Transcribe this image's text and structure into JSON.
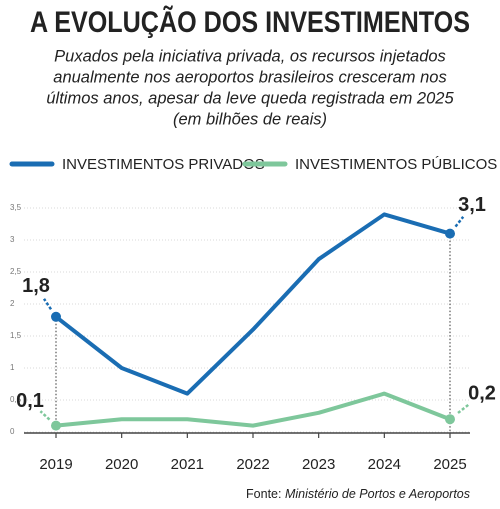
{
  "chart_data": {
    "type": "line",
    "title": "A EVOLUÇÃO DOS INVESTIMENTOS",
    "subtitle": [
      "Puxados pela iniciativa privada, os recursos injetados",
      "anualmente nos aeroportos brasileiros cresceram nos",
      "últimos anos, apesar da leve queda registrada em 2025",
      "(em bilhões de reais)"
    ],
    "categories": [
      "2019",
      "2020",
      "2021",
      "2022",
      "2023",
      "2024",
      "2025"
    ],
    "series": [
      {
        "name": "INVESTIMENTOS PRIVADOS",
        "color": "#1a6db3",
        "values": [
          1.8,
          1.0,
          0.6,
          1.6,
          2.7,
          3.4,
          3.1
        ],
        "value_labels": [
          "1,8",
          null,
          null,
          null,
          null,
          null,
          "3,1"
        ]
      },
      {
        "name": "INVESTIMENTOS PÚBLICOS",
        "color": "#7ec79b",
        "values": [
          0.1,
          0.2,
          0.2,
          0.1,
          0.3,
          0.6,
          0.2
        ],
        "value_labels": [
          "0,1",
          null,
          null,
          null,
          null,
          null,
          "0,2"
        ]
      }
    ],
    "ylim": [
      0,
      3.5
    ],
    "yticks": [
      0,
      {
        "value": 0.5,
        "label": "0,5"
      },
      1,
      {
        "value": 1.5,
        "label": "1,5"
      },
      2,
      {
        "value": 2.5,
        "label": "2,5"
      },
      3,
      {
        "value": 3.5,
        "label": "3,5"
      }
    ],
    "grid": true,
    "source_label": "Fonte:",
    "source": "Ministério de Portos e Aeroportos"
  }
}
